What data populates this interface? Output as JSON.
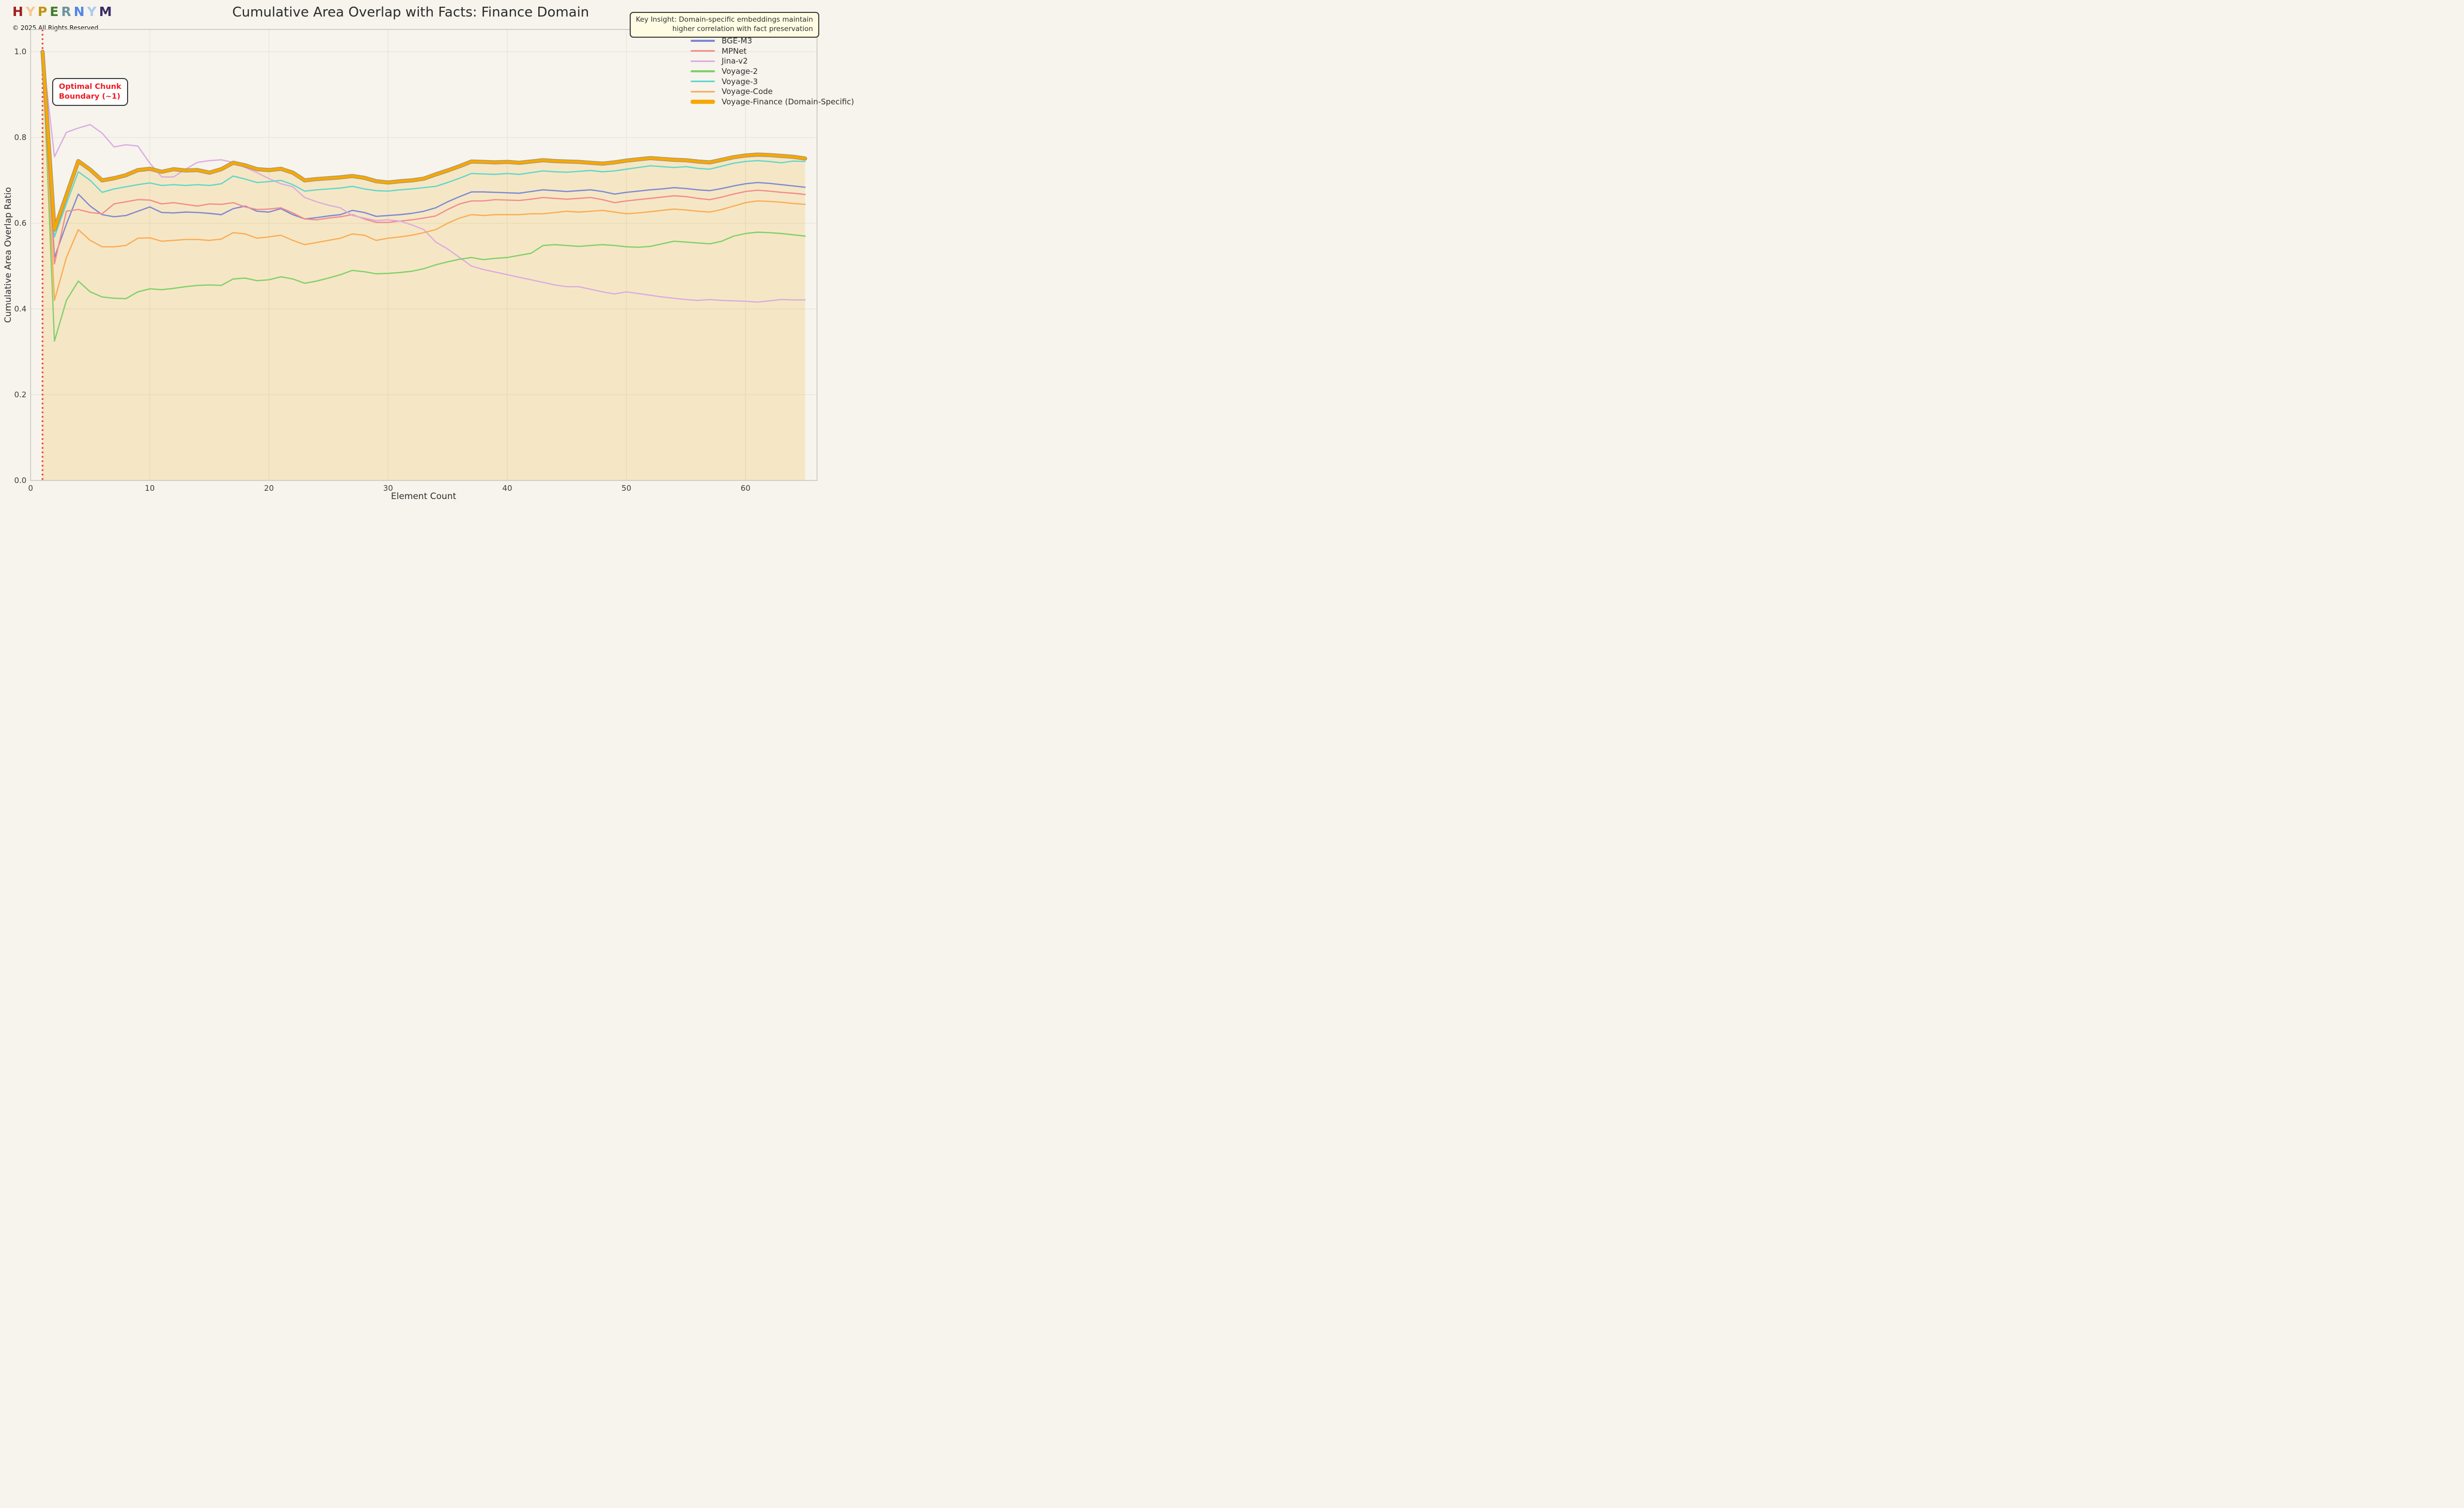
{
  "header": {
    "logo_letters": [
      {
        "ch": "H",
        "color": "#a01f1f"
      },
      {
        "ch": "Y",
        "color": "#f8c68e"
      },
      {
        "ch": "P",
        "color": "#c29310"
      },
      {
        "ch": "E",
        "color": "#417d2c"
      },
      {
        "ch": "R",
        "color": "#6b93a0"
      },
      {
        "ch": "N",
        "color": "#4f86e8"
      },
      {
        "ch": "Y",
        "color": "#a9cbef"
      },
      {
        "ch": "M",
        "color": "#3a2d67"
      }
    ],
    "copyright": "© 2025 All Rights Reserved",
    "title": "Cumulative Area Overlap with Facts: Finance Domain",
    "key_insight_line1": "Key Insight: Domain-specific embeddings maintain",
    "key_insight_line2": "higher correlation with fact preservation"
  },
  "annotation": {
    "line1": "Optimal Chunk",
    "line2": "Boundary (~1)",
    "text_color": "#ed1c24"
  },
  "colors": {
    "background": "#f6f4ed",
    "grid": "#e7e4da",
    "spine": "#c9c6be",
    "boundary_line": "#f44336",
    "fill_under_domain_series": "rgba(246,166,0,0.17)",
    "domain_series_outline": "#979088"
  },
  "chart_data": {
    "type": "line",
    "title": "Cumulative Area Overlap with Facts: Finance Domain",
    "xlabel": "Element Count",
    "ylabel": "Cumulative Area Overlap Ratio",
    "xlim": [
      0,
      66
    ],
    "ylim": [
      0,
      1.052
    ],
    "x_ticks": [
      "0",
      "10",
      "20",
      "30",
      "40",
      "50",
      "60"
    ],
    "x_tick_values": [
      0,
      10,
      20,
      30,
      40,
      50,
      60
    ],
    "y_ticks": [
      "0.0",
      "0.2",
      "0.4",
      "0.6",
      "0.8",
      "1.0"
    ],
    "y_tick_values": [
      0.0,
      0.2,
      0.4,
      0.6,
      0.8,
      1.0
    ],
    "grid": true,
    "legend_position": "upper right",
    "boundary_vline": {
      "x": 1,
      "style": "dotted",
      "label": "Optimal Chunk Boundary (~1)"
    },
    "x": [
      1,
      2,
      3,
      4,
      5,
      6,
      7,
      8,
      9,
      10,
      11,
      12,
      13,
      14,
      15,
      16,
      17,
      18,
      19,
      20,
      21,
      22,
      23,
      24,
      25,
      26,
      27,
      28,
      29,
      30,
      31,
      32,
      33,
      34,
      35,
      36,
      37,
      38,
      39,
      40,
      41,
      42,
      43,
      44,
      45,
      46,
      47,
      48,
      49,
      50,
      51,
      52,
      53,
      54,
      55,
      56,
      57,
      58,
      59,
      60,
      61,
      62,
      63,
      64,
      65
    ],
    "series": [
      {
        "name": "BGE-M3",
        "color": "#7b88d4",
        "width": 2.4,
        "values": [
          1.0,
          0.52,
          0.598,
          0.668,
          0.64,
          0.62,
          0.615,
          0.618,
          0.628,
          0.638,
          0.625,
          0.624,
          0.626,
          0.625,
          0.623,
          0.62,
          0.634,
          0.64,
          0.628,
          0.626,
          0.634,
          0.62,
          0.61,
          0.613,
          0.617,
          0.62,
          0.63,
          0.625,
          0.616,
          0.618,
          0.62,
          0.623,
          0.628,
          0.636,
          0.65,
          0.662,
          0.673,
          0.673,
          0.672,
          0.671,
          0.67,
          0.674,
          0.678,
          0.676,
          0.674,
          0.676,
          0.678,
          0.674,
          0.668,
          0.672,
          0.675,
          0.678,
          0.68,
          0.683,
          0.681,
          0.678,
          0.676,
          0.681,
          0.687,
          0.692,
          0.695,
          0.693,
          0.69,
          0.687,
          0.684
        ]
      },
      {
        "name": "MPNet",
        "color": "#f48a8c",
        "width": 2.4,
        "values": [
          1.0,
          0.505,
          0.628,
          0.632,
          0.625,
          0.622,
          0.645,
          0.65,
          0.655,
          0.654,
          0.645,
          0.648,
          0.644,
          0.64,
          0.645,
          0.644,
          0.648,
          0.638,
          0.632,
          0.633,
          0.636,
          0.624,
          0.61,
          0.608,
          0.612,
          0.615,
          0.62,
          0.61,
          0.602,
          0.602,
          0.605,
          0.608,
          0.612,
          0.617,
          0.632,
          0.645,
          0.652,
          0.652,
          0.655,
          0.654,
          0.653,
          0.656,
          0.66,
          0.658,
          0.656,
          0.658,
          0.66,
          0.655,
          0.648,
          0.652,
          0.655,
          0.658,
          0.661,
          0.664,
          0.662,
          0.658,
          0.655,
          0.661,
          0.668,
          0.674,
          0.677,
          0.675,
          0.672,
          0.67,
          0.667
        ]
      },
      {
        "name": "Jina-v2",
        "color": "#dcabe0",
        "width": 2.4,
        "values": [
          1.0,
          0.755,
          0.812,
          0.822,
          0.83,
          0.81,
          0.778,
          0.783,
          0.78,
          0.74,
          0.708,
          0.708,
          0.726,
          0.742,
          0.746,
          0.748,
          0.742,
          0.73,
          0.718,
          0.704,
          0.692,
          0.685,
          0.66,
          0.65,
          0.642,
          0.636,
          0.618,
          0.612,
          0.606,
          0.608,
          0.605,
          0.596,
          0.585,
          0.556,
          0.54,
          0.52,
          0.5,
          0.492,
          0.486,
          0.48,
          0.474,
          0.468,
          0.462,
          0.456,
          0.452,
          0.452,
          0.446,
          0.44,
          0.435,
          0.44,
          0.436,
          0.432,
          0.428,
          0.425,
          0.422,
          0.42,
          0.422,
          0.42,
          0.419,
          0.418,
          0.416,
          0.419,
          0.422,
          0.421,
          0.421
        ]
      },
      {
        "name": "Voyage-2",
        "color": "#7ed069",
        "width": 2.4,
        "values": [
          1.0,
          0.325,
          0.42,
          0.465,
          0.44,
          0.428,
          0.425,
          0.424,
          0.44,
          0.447,
          0.445,
          0.448,
          0.452,
          0.455,
          0.456,
          0.455,
          0.47,
          0.472,
          0.466,
          0.468,
          0.475,
          0.47,
          0.46,
          0.465,
          0.472,
          0.48,
          0.49,
          0.487,
          0.482,
          0.483,
          0.485,
          0.488,
          0.494,
          0.503,
          0.51,
          0.516,
          0.52,
          0.515,
          0.518,
          0.52,
          0.525,
          0.53,
          0.548,
          0.55,
          0.548,
          0.546,
          0.548,
          0.55,
          0.548,
          0.545,
          0.544,
          0.546,
          0.552,
          0.558,
          0.556,
          0.554,
          0.552,
          0.558,
          0.57,
          0.576,
          0.579,
          0.578,
          0.576,
          0.573,
          0.57
        ]
      },
      {
        "name": "Voyage-3",
        "color": "#5fd6cc",
        "width": 2.4,
        "values": [
          1.0,
          0.568,
          0.645,
          0.72,
          0.7,
          0.672,
          0.68,
          0.685,
          0.69,
          0.694,
          0.688,
          0.69,
          0.688,
          0.69,
          0.688,
          0.692,
          0.71,
          0.703,
          0.695,
          0.697,
          0.7,
          0.69,
          0.675,
          0.678,
          0.68,
          0.682,
          0.686,
          0.68,
          0.676,
          0.675,
          0.678,
          0.68,
          0.683,
          0.686,
          0.695,
          0.705,
          0.716,
          0.715,
          0.714,
          0.716,
          0.714,
          0.718,
          0.722,
          0.72,
          0.719,
          0.721,
          0.723,
          0.72,
          0.722,
          0.726,
          0.73,
          0.734,
          0.732,
          0.73,
          0.732,
          0.728,
          0.726,
          0.733,
          0.74,
          0.744,
          0.746,
          0.744,
          0.741,
          0.745,
          0.744
        ]
      },
      {
        "name": "Voyage-Code",
        "color": "#fbab55",
        "width": 2.4,
        "values": [
          1.0,
          0.42,
          0.52,
          0.585,
          0.56,
          0.545,
          0.545,
          0.548,
          0.565,
          0.566,
          0.558,
          0.56,
          0.562,
          0.562,
          0.56,
          0.563,
          0.578,
          0.575,
          0.565,
          0.568,
          0.572,
          0.56,
          0.55,
          0.555,
          0.56,
          0.565,
          0.575,
          0.572,
          0.56,
          0.565,
          0.568,
          0.572,
          0.578,
          0.585,
          0.6,
          0.612,
          0.62,
          0.618,
          0.62,
          0.62,
          0.62,
          0.622,
          0.622,
          0.625,
          0.628,
          0.626,
          0.628,
          0.63,
          0.626,
          0.622,
          0.624,
          0.627,
          0.63,
          0.633,
          0.631,
          0.628,
          0.626,
          0.632,
          0.64,
          0.648,
          0.652,
          0.651,
          0.649,
          0.646,
          0.644
        ]
      },
      {
        "name": "Voyage-Finance (Domain-Specific)",
        "color": "#f6a800",
        "width": 5.6,
        "fill": true,
        "outlined": true,
        "values": [
          1.0,
          0.585,
          0.665,
          0.745,
          0.725,
          0.7,
          0.705,
          0.712,
          0.724,
          0.727,
          0.72,
          0.726,
          0.723,
          0.724,
          0.718,
          0.726,
          0.741,
          0.735,
          0.726,
          0.724,
          0.727,
          0.718,
          0.7,
          0.703,
          0.705,
          0.707,
          0.71,
          0.706,
          0.698,
          0.695,
          0.698,
          0.7,
          0.704,
          0.714,
          0.723,
          0.733,
          0.744,
          0.743,
          0.742,
          0.743,
          0.741,
          0.744,
          0.747,
          0.745,
          0.744,
          0.743,
          0.741,
          0.739,
          0.742,
          0.746,
          0.749,
          0.752,
          0.75,
          0.748,
          0.747,
          0.744,
          0.742,
          0.748,
          0.754,
          0.758,
          0.76,
          0.759,
          0.757,
          0.755,
          0.751
        ]
      }
    ]
  },
  "layout_note": ""
}
